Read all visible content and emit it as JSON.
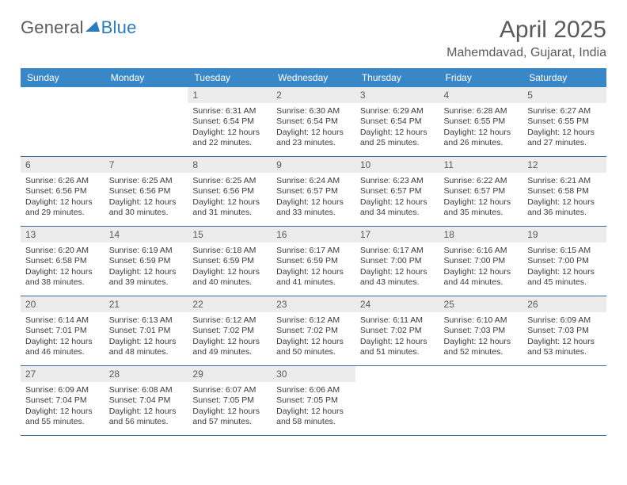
{
  "logo": {
    "word1": "General",
    "word2": "Blue"
  },
  "title": "April 2025",
  "subtitle": "Mahemdavad, Gujarat, India",
  "colors": {
    "header_bg": "#3a87c7",
    "header_text": "#ffffff",
    "day_bg": "#ececec",
    "rule": "#3a6fa0",
    "text": "#3b3b3b",
    "title_text": "#5a5a5a"
  },
  "fontsizes": {
    "title": 30,
    "subtitle": 16,
    "weekday": 12,
    "daynum": 12,
    "body": 10.5
  },
  "weekdays": [
    "Sunday",
    "Monday",
    "Tuesday",
    "Wednesday",
    "Thursday",
    "Friday",
    "Saturday"
  ],
  "days": [
    {
      "n": 1,
      "sunrise": "6:31 AM",
      "sunset": "6:54 PM",
      "daylight": "12 hours and 22 minutes."
    },
    {
      "n": 2,
      "sunrise": "6:30 AM",
      "sunset": "6:54 PM",
      "daylight": "12 hours and 23 minutes."
    },
    {
      "n": 3,
      "sunrise": "6:29 AM",
      "sunset": "6:54 PM",
      "daylight": "12 hours and 25 minutes."
    },
    {
      "n": 4,
      "sunrise": "6:28 AM",
      "sunset": "6:55 PM",
      "daylight": "12 hours and 26 minutes."
    },
    {
      "n": 5,
      "sunrise": "6:27 AM",
      "sunset": "6:55 PM",
      "daylight": "12 hours and 27 minutes."
    },
    {
      "n": 6,
      "sunrise": "6:26 AM",
      "sunset": "6:56 PM",
      "daylight": "12 hours and 29 minutes."
    },
    {
      "n": 7,
      "sunrise": "6:25 AM",
      "sunset": "6:56 PM",
      "daylight": "12 hours and 30 minutes."
    },
    {
      "n": 8,
      "sunrise": "6:25 AM",
      "sunset": "6:56 PM",
      "daylight": "12 hours and 31 minutes."
    },
    {
      "n": 9,
      "sunrise": "6:24 AM",
      "sunset": "6:57 PM",
      "daylight": "12 hours and 33 minutes."
    },
    {
      "n": 10,
      "sunrise": "6:23 AM",
      "sunset": "6:57 PM",
      "daylight": "12 hours and 34 minutes."
    },
    {
      "n": 11,
      "sunrise": "6:22 AM",
      "sunset": "6:57 PM",
      "daylight": "12 hours and 35 minutes."
    },
    {
      "n": 12,
      "sunrise": "6:21 AM",
      "sunset": "6:58 PM",
      "daylight": "12 hours and 36 minutes."
    },
    {
      "n": 13,
      "sunrise": "6:20 AM",
      "sunset": "6:58 PM",
      "daylight": "12 hours and 38 minutes."
    },
    {
      "n": 14,
      "sunrise": "6:19 AM",
      "sunset": "6:59 PM",
      "daylight": "12 hours and 39 minutes."
    },
    {
      "n": 15,
      "sunrise": "6:18 AM",
      "sunset": "6:59 PM",
      "daylight": "12 hours and 40 minutes."
    },
    {
      "n": 16,
      "sunrise": "6:17 AM",
      "sunset": "6:59 PM",
      "daylight": "12 hours and 41 minutes."
    },
    {
      "n": 17,
      "sunrise": "6:17 AM",
      "sunset": "7:00 PM",
      "daylight": "12 hours and 43 minutes."
    },
    {
      "n": 18,
      "sunrise": "6:16 AM",
      "sunset": "7:00 PM",
      "daylight": "12 hours and 44 minutes."
    },
    {
      "n": 19,
      "sunrise": "6:15 AM",
      "sunset": "7:00 PM",
      "daylight": "12 hours and 45 minutes."
    },
    {
      "n": 20,
      "sunrise": "6:14 AM",
      "sunset": "7:01 PM",
      "daylight": "12 hours and 46 minutes."
    },
    {
      "n": 21,
      "sunrise": "6:13 AM",
      "sunset": "7:01 PM",
      "daylight": "12 hours and 48 minutes."
    },
    {
      "n": 22,
      "sunrise": "6:12 AM",
      "sunset": "7:02 PM",
      "daylight": "12 hours and 49 minutes."
    },
    {
      "n": 23,
      "sunrise": "6:12 AM",
      "sunset": "7:02 PM",
      "daylight": "12 hours and 50 minutes."
    },
    {
      "n": 24,
      "sunrise": "6:11 AM",
      "sunset": "7:02 PM",
      "daylight": "12 hours and 51 minutes."
    },
    {
      "n": 25,
      "sunrise": "6:10 AM",
      "sunset": "7:03 PM",
      "daylight": "12 hours and 52 minutes."
    },
    {
      "n": 26,
      "sunrise": "6:09 AM",
      "sunset": "7:03 PM",
      "daylight": "12 hours and 53 minutes."
    },
    {
      "n": 27,
      "sunrise": "6:09 AM",
      "sunset": "7:04 PM",
      "daylight": "12 hours and 55 minutes."
    },
    {
      "n": 28,
      "sunrise": "6:08 AM",
      "sunset": "7:04 PM",
      "daylight": "12 hours and 56 minutes."
    },
    {
      "n": 29,
      "sunrise": "6:07 AM",
      "sunset": "7:05 PM",
      "daylight": "12 hours and 57 minutes."
    },
    {
      "n": 30,
      "sunrise": "6:06 AM",
      "sunset": "7:05 PM",
      "daylight": "12 hours and 58 minutes."
    }
  ],
  "labels": {
    "sunrise": "Sunrise:",
    "sunset": "Sunset:",
    "daylight": "Daylight:"
  },
  "layout": {
    "leading_blanks": 2,
    "rows": 5,
    "cols": 7
  }
}
